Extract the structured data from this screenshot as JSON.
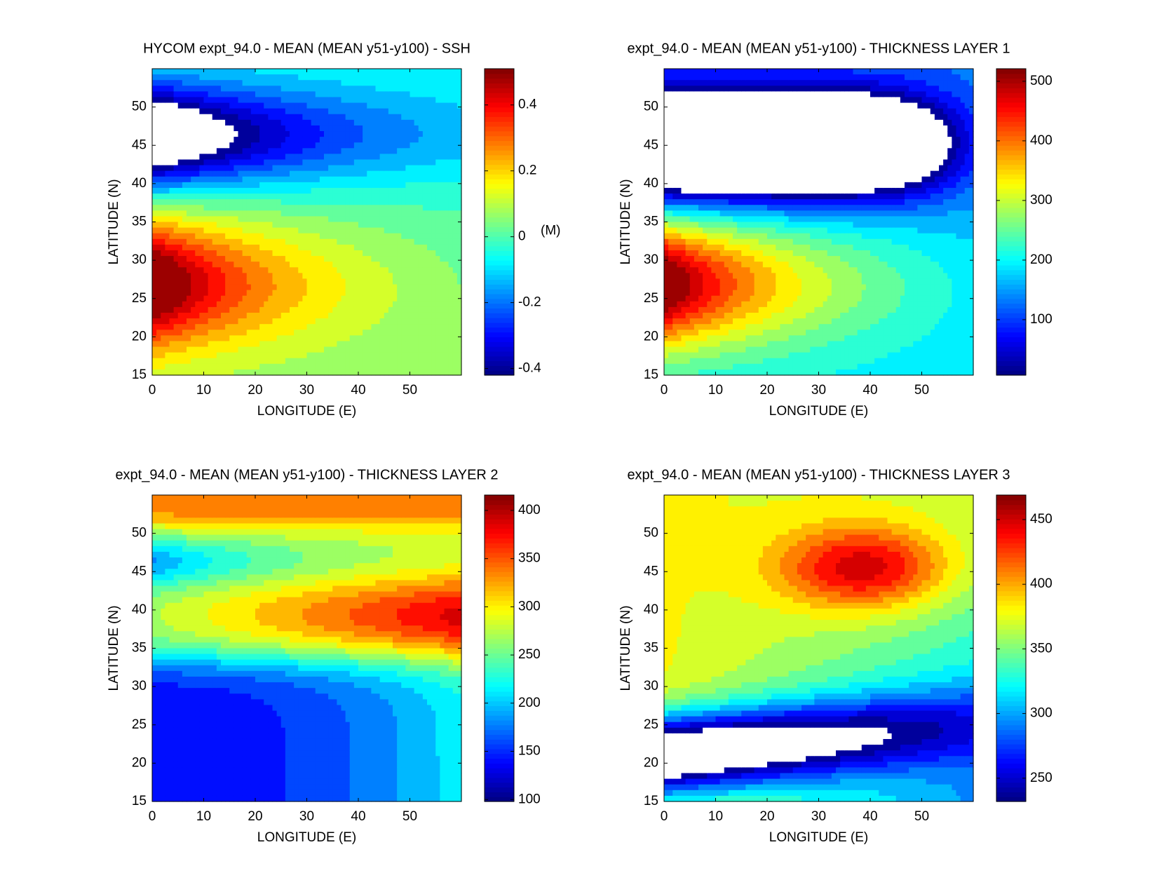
{
  "chart_data": [
    {
      "type": "contour",
      "title": "HYCOM expt_94.0 - MEAN (MEAN y51-y100) - SSH",
      "xlabel": "LONGITUDE (E)",
      "ylabel": "LATITUDE (N)",
      "xlim": [
        0,
        60
      ],
      "ylim": [
        15,
        55
      ],
      "xticks": [
        0,
        10,
        20,
        30,
        40,
        50
      ],
      "yticks": [
        15,
        20,
        25,
        30,
        35,
        40,
        45,
        50
      ],
      "colorbar": {
        "clim": [
          -0.42,
          0.51
        ],
        "ticks": [
          -0.4,
          -0.2,
          0,
          0.2,
          0.4
        ],
        "label": "(M)"
      }
    },
    {
      "type": "contour",
      "title": "expt_94.0 - MEAN (MEAN y51-y100) - THICKNESS LAYER 1",
      "xlabel": "LONGITUDE (E)",
      "ylabel": "LATITUDE (N)",
      "xlim": [
        0,
        60
      ],
      "ylim": [
        15,
        55
      ],
      "xticks": [
        0,
        10,
        20,
        30,
        40,
        50
      ],
      "yticks": [
        15,
        20,
        25,
        30,
        35,
        40,
        45,
        50
      ],
      "colorbar": {
        "clim": [
          7,
          521
        ],
        "ticks": [
          100,
          200,
          300,
          400,
          500
        ]
      }
    },
    {
      "type": "contour",
      "title": "expt_94.0 - MEAN (MEAN y51-y100) - THICKNESS LAYER 2",
      "xlabel": "LONGITUDE (E)",
      "ylabel": "LATITUDE (N)",
      "xlim": [
        0,
        60
      ],
      "ylim": [
        15,
        55
      ],
      "xticks": [
        0,
        10,
        20,
        30,
        40,
        50
      ],
      "yticks": [
        15,
        20,
        25,
        30,
        35,
        40,
        45,
        50
      ],
      "colorbar": {
        "clim": [
          98,
          416
        ],
        "ticks": [
          100,
          150,
          200,
          250,
          300,
          350,
          400
        ]
      }
    },
    {
      "type": "contour",
      "title": "expt_94.0 - MEAN (MEAN y51-y100) - THICKNESS LAYER 3",
      "xlabel": "LONGITUDE (E)",
      "ylabel": "LATITUDE (N)",
      "xlim": [
        0,
        60
      ],
      "ylim": [
        15,
        55
      ],
      "xticks": [
        0,
        10,
        20,
        30,
        40,
        50
      ],
      "yticks": [
        15,
        20,
        25,
        30,
        35,
        40,
        45,
        50
      ],
      "colorbar": {
        "clim": [
          232,
          469
        ],
        "ticks": [
          250,
          300,
          350,
          400,
          450
        ]
      }
    }
  ]
}
